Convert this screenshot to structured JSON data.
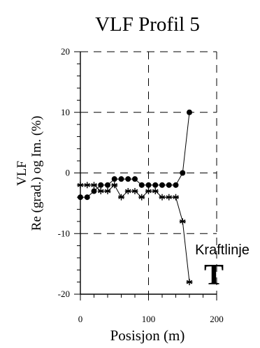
{
  "chart_data": {
    "type": "line",
    "title": "VLF Profil 5",
    "xlabel": "Posisjon (m)",
    "ylabel_line1": "VLF",
    "ylabel_line2": "Re (grad.) og Im. (%)",
    "xlim": [
      0,
      200
    ],
    "ylim": [
      -20,
      20
    ],
    "xticks": [
      0,
      100,
      200
    ],
    "xtick_labels": [
      "0",
      "100",
      "200"
    ],
    "yticks": [
      20,
      10,
      0,
      -10,
      -20
    ],
    "ytick_labels": [
      "20",
      "10",
      "0",
      "-10",
      "-20"
    ],
    "grid": "dashed",
    "series": [
      {
        "marker": "circle",
        "x": [
          0,
          10,
          20,
          30,
          40,
          50,
          60,
          70,
          80,
          90,
          100,
          110,
          120,
          130,
          140,
          150,
          160
        ],
        "y": [
          -4,
          -4,
          -3,
          -2,
          -2,
          -1,
          -1,
          -1,
          -1,
          -2,
          -2,
          -2,
          -2,
          -2,
          -2,
          0,
          10
        ]
      },
      {
        "marker": "asterisk",
        "x": [
          0,
          10,
          20,
          30,
          40,
          50,
          60,
          70,
          80,
          90,
          100,
          110,
          120,
          130,
          140,
          150,
          160
        ],
        "y": [
          -2,
          -2,
          -2,
          -3,
          -3,
          -2,
          -4,
          -3,
          -3,
          -4,
          -3,
          -3,
          -4,
          -4,
          -4,
          -8,
          -18
        ]
      }
    ],
    "annotation": {
      "label": "Kraftlinje",
      "symbol": "T"
    }
  }
}
